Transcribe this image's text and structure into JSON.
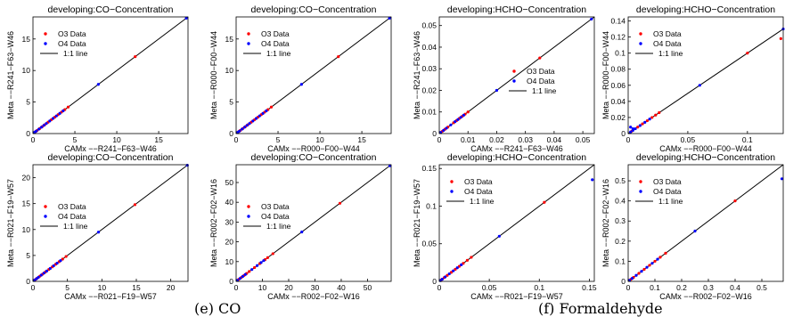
{
  "captions": {
    "left": "(e) CO",
    "right": "(f) Formaldehyde"
  },
  "colors": {
    "o3": "#ff0000",
    "o4": "#0000ff",
    "line": "#000000"
  },
  "chart_data": [
    {
      "type": "scatter",
      "title": "developing:CO−Concentration",
      "xlabel": "CAMx −−R241−F63−W46",
      "ylabel": "Meta −−R241−F63−W46",
      "xlim": [
        0,
        18.5
      ],
      "ylim": [
        0,
        18.5
      ],
      "xticks": [
        0,
        5,
        10,
        15
      ],
      "yticks": [
        0,
        5,
        10,
        15
      ],
      "legend": {
        "position": "top-left",
        "entries": [
          "O3 Data",
          "O4 Data",
          "1:1 line"
        ]
      },
      "series": [
        {
          "name": "O3 Data",
          "x": [
            0.3,
            0.5,
            0.8,
            1.1,
            1.4,
            1.8,
            2.2,
            2.6,
            3.0,
            3.4,
            3.8,
            4.2,
            12.2
          ],
          "y": [
            0.3,
            0.5,
            0.8,
            1.1,
            1.4,
            1.8,
            2.2,
            2.6,
            3.0,
            3.4,
            3.8,
            4.2,
            12.2
          ]
        },
        {
          "name": "O4 Data",
          "x": [
            0.2,
            0.4,
            0.7,
            1.0,
            1.3,
            1.6,
            2.0,
            2.4,
            2.8,
            3.2,
            3.6,
            7.8,
            18.3
          ],
          "y": [
            0.2,
            0.4,
            0.7,
            1.0,
            1.3,
            1.6,
            2.0,
            2.4,
            2.8,
            3.2,
            3.6,
            7.8,
            18.3
          ]
        }
      ]
    },
    {
      "type": "scatter",
      "title": "developing:CO−Concentration",
      "xlabel": "CAMx −−R000−F00−W44",
      "ylabel": "Meta −−R000−F00−W44",
      "xlim": [
        0,
        18.5
      ],
      "ylim": [
        0,
        18.5
      ],
      "xticks": [
        0,
        5,
        10,
        15
      ],
      "yticks": [
        0,
        5,
        10,
        15
      ],
      "legend": {
        "position": "top-left",
        "entries": [
          "O3 Data",
          "O4 Data",
          "1:1 line"
        ]
      },
      "series": [
        {
          "name": "O3 Data",
          "x": [
            0.3,
            0.5,
            0.8,
            1.1,
            1.4,
            1.8,
            2.2,
            2.6,
            3.0,
            3.4,
            3.8,
            4.2,
            12.2
          ],
          "y": [
            0.3,
            0.5,
            0.8,
            1.1,
            1.4,
            1.8,
            2.2,
            2.6,
            3.0,
            3.4,
            3.8,
            4.2,
            12.2
          ]
        },
        {
          "name": "O4 Data",
          "x": [
            0.2,
            0.4,
            0.7,
            1.0,
            1.3,
            1.6,
            2.0,
            2.4,
            2.8,
            3.2,
            3.6,
            7.8,
            18.3
          ],
          "y": [
            0.2,
            0.4,
            0.7,
            1.0,
            1.3,
            1.6,
            2.0,
            2.4,
            2.8,
            3.2,
            3.6,
            7.8,
            18.3
          ]
        }
      ]
    },
    {
      "type": "scatter",
      "title": "developing:HCHO−Concentration",
      "xlabel": "CAMx −−R241−F63−W46",
      "ylabel": "Meta −−R241−F63−W46",
      "xlim": [
        0,
        0.054
      ],
      "ylim": [
        0,
        0.054
      ],
      "xticks": [
        0,
        0.01,
        0.02,
        0.03,
        0.04,
        0.05
      ],
      "yticks": [
        0,
        0.01,
        0.02,
        0.03,
        0.04,
        0.05
      ],
      "legend": {
        "position": "center-right",
        "entries": [
          "O3 Data",
          "O4 Data",
          "1:1 line"
        ]
      },
      "series": [
        {
          "name": "O3 Data",
          "x": [
            0.001,
            0.002,
            0.003,
            0.005,
            0.006,
            0.007,
            0.008,
            0.009,
            0.01,
            0.035
          ],
          "y": [
            0.001,
            0.002,
            0.003,
            0.005,
            0.006,
            0.007,
            0.008,
            0.009,
            0.01,
            0.035
          ]
        },
        {
          "name": "O4 Data",
          "x": [
            0.0005,
            0.0015,
            0.0025,
            0.004,
            0.0055,
            0.0065,
            0.0075,
            0.0085,
            0.02,
            0.053
          ],
          "y": [
            0.0005,
            0.0015,
            0.0025,
            0.004,
            0.0055,
            0.0065,
            0.0075,
            0.0085,
            0.02,
            0.053
          ]
        }
      ]
    },
    {
      "type": "scatter",
      "title": "developing:HCHO−Concentration",
      "xlabel": "CAMx −−R000−F00−W44",
      "ylabel": "Meta −−R000−F00−W44",
      "xlim": [
        0,
        0.13
      ],
      "ylim": [
        0,
        0.145
      ],
      "xticks": [
        0,
        0.05,
        0.1
      ],
      "yticks": [
        0,
        0.02,
        0.04,
        0.06,
        0.08,
        0.1,
        0.12,
        0.14
      ],
      "legend": {
        "position": "top-left",
        "entries": [
          "O3 Data",
          "O4 Data",
          "1:1 line"
        ]
      },
      "series": [
        {
          "name": "O3 Data",
          "x": [
            0.003,
            0.008,
            0.012,
            0.016,
            0.02,
            0.023,
            0.026,
            0.1,
            0.128
          ],
          "y": [
            0.003,
            0.008,
            0.012,
            0.016,
            0.02,
            0.023,
            0.026,
            0.1,
            0.118
          ]
        },
        {
          "name": "O4 Data",
          "x": [
            0.002,
            0.004,
            0.006,
            0.01,
            0.014,
            0.018,
            0.002,
            0.004,
            0.06,
            0.13
          ],
          "y": [
            0.002,
            0.004,
            0.006,
            0.01,
            0.014,
            0.018,
            0.008,
            0.006,
            0.06,
            0.13
          ]
        }
      ]
    },
    {
      "type": "scatter",
      "title": "developing:CO−Concentration",
      "xlabel": "CAMx −−R021−F19−W57",
      "ylabel": "Meta −−R021−F19−W57",
      "xlim": [
        0,
        22.5
      ],
      "ylim": [
        0,
        22.5
      ],
      "xticks": [
        0,
        5,
        10,
        15,
        20
      ],
      "yticks": [
        0,
        5,
        10,
        15,
        20
      ],
      "legend": {
        "position": "center-left",
        "entries": [
          "O3 Data",
          "O4 Data",
          "1:1 line"
        ]
      },
      "series": [
        {
          "name": "O3 Data",
          "x": [
            0.3,
            0.6,
            1.0,
            1.4,
            1.8,
            2.3,
            2.8,
            3.3,
            3.8,
            4.3,
            4.8,
            14.8
          ],
          "y": [
            0.3,
            0.6,
            1.0,
            1.4,
            1.8,
            2.3,
            2.8,
            3.3,
            3.8,
            4.3,
            4.8,
            14.8
          ]
        },
        {
          "name": "O4 Data",
          "x": [
            0.2,
            0.5,
            0.8,
            1.2,
            1.6,
            2.0,
            2.5,
            3.0,
            3.5,
            4.0,
            9.5,
            22.4
          ],
          "y": [
            0.2,
            0.5,
            0.8,
            1.2,
            1.6,
            2.0,
            2.5,
            3.0,
            3.5,
            4.0,
            9.5,
            22.4
          ]
        }
      ]
    },
    {
      "type": "scatter",
      "title": "developing:CO−Concentration",
      "xlabel": "CAMx −−R002−F02−W16",
      "ylabel": "Meta −−R002−F02−W16",
      "xlim": [
        0,
        59
      ],
      "ylim": [
        0,
        59
      ],
      "xticks": [
        0,
        10,
        20,
        30,
        40,
        50
      ],
      "yticks": [
        0,
        10,
        20,
        30,
        40,
        50
      ],
      "legend": {
        "position": "center-left",
        "entries": [
          "O3 Data",
          "O4 Data",
          "1:1 line"
        ]
      },
      "series": [
        {
          "name": "O3 Data",
          "x": [
            1,
            2,
            3,
            4,
            5,
            7,
            9,
            11,
            12,
            14,
            39.5
          ],
          "y": [
            1,
            2,
            3,
            4,
            5,
            7,
            9,
            11,
            12,
            14,
            39.5
          ]
        },
        {
          "name": "O4 Data",
          "x": [
            0.5,
            1.5,
            2.5,
            3.5,
            6,
            8,
            9.5,
            10.5,
            25,
            58.5
          ],
          "y": [
            0.5,
            1.5,
            2.5,
            3.5,
            6,
            8,
            9.5,
            10.5,
            25,
            58.5
          ]
        }
      ]
    },
    {
      "type": "scatter",
      "title": "developing:HCHO−Concentration",
      "xlabel": "CAMx −−R021−F19−W57",
      "ylabel": "Meta −−R021−F19−W57",
      "xlim": [
        0,
        0.155
      ],
      "ylim": [
        0,
        0.155
      ],
      "xticks": [
        0,
        0.05,
        0.1,
        0.15
      ],
      "yticks": [
        0,
        0.05,
        0.1,
        0.15
      ],
      "legend": {
        "position": "top-left",
        "entries": [
          "O3 Data",
          "O4 Data",
          "1:1 line"
        ]
      },
      "series": [
        {
          "name": "O3 Data",
          "x": [
            0.002,
            0.005,
            0.008,
            0.012,
            0.016,
            0.02,
            0.024,
            0.028,
            0.032,
            0.105
          ],
          "y": [
            0.002,
            0.005,
            0.008,
            0.012,
            0.016,
            0.02,
            0.024,
            0.028,
            0.032,
            0.105
          ]
        },
        {
          "name": "O4 Data",
          "x": [
            0.001,
            0.003,
            0.006,
            0.01,
            0.014,
            0.018,
            0.022,
            0.06,
            0.153
          ],
          "y": [
            0.001,
            0.003,
            0.006,
            0.01,
            0.014,
            0.018,
            0.022,
            0.06,
            0.135
          ]
        }
      ]
    },
    {
      "type": "scatter",
      "title": "developing:HCHO−Concentration",
      "xlabel": "CAMx −−R002−F02−W16",
      "ylabel": "Meta −−R002−F02−W16",
      "xlim": [
        0,
        0.58
      ],
      "ylim": [
        0,
        0.58
      ],
      "xticks": [
        0,
        0.1,
        0.2,
        0.3,
        0.4,
        0.5
      ],
      "yticks": [
        0,
        0.1,
        0.2,
        0.3,
        0.4,
        0.5
      ],
      "legend": {
        "position": "top-left",
        "entries": [
          "O3 Data",
          "O4 Data",
          "1:1 line"
        ]
      },
      "series": [
        {
          "name": "O3 Data",
          "x": [
            0.01,
            0.02,
            0.04,
            0.06,
            0.08,
            0.1,
            0.12,
            0.14,
            0.4
          ],
          "y": [
            0.01,
            0.02,
            0.04,
            0.06,
            0.08,
            0.1,
            0.12,
            0.14,
            0.4
          ]
        },
        {
          "name": "O4 Data",
          "x": [
            0.005,
            0.015,
            0.03,
            0.05,
            0.07,
            0.09,
            0.11,
            0.25,
            0.575
          ],
          "y": [
            0.005,
            0.015,
            0.03,
            0.05,
            0.07,
            0.09,
            0.11,
            0.25,
            0.51
          ]
        }
      ]
    }
  ]
}
